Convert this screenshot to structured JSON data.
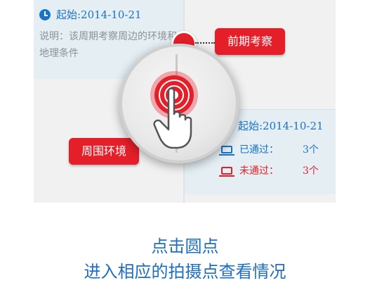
{
  "top_card": {
    "date": "起始:2014-10-21",
    "description": "说明：该周期考察周边的环境和地理条件"
  },
  "labels": {
    "preliminary": "前期考察",
    "surroundings": "周围环境"
  },
  "right_card": {
    "date": "起始:2014-10-21",
    "passed_label": "已通过：",
    "passed_count": "3个",
    "failed_label": "未通过：",
    "failed_count": "3个"
  },
  "captions": {
    "line1": "点击圆点",
    "line2": "进入相应的拍摄点查看情况"
  },
  "colors": {
    "accent_red": "#e41f2a",
    "accent_blue": "#1a73c8",
    "card_bg": "#e4eef3"
  },
  "icons": [
    "clock-icon",
    "laptop-icon",
    "hand-pointer-icon",
    "target-icon"
  ]
}
